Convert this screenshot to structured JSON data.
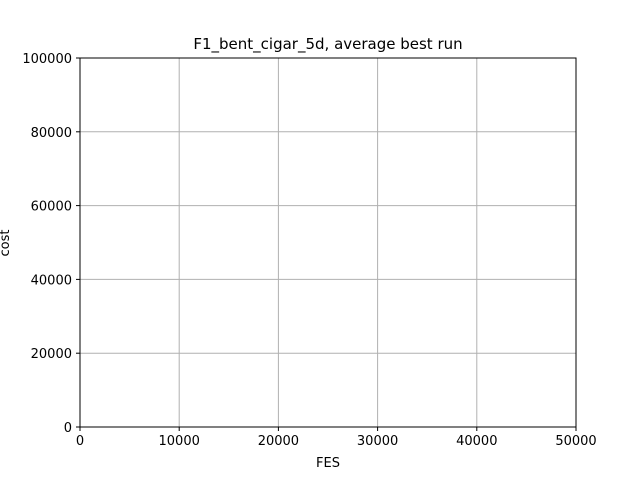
{
  "chart_data": {
    "type": "line",
    "title": "F1_bent_cigar_5d, average best run",
    "xlabel": "FES",
    "ylabel": "cost",
    "xlim": [
      0,
      50000
    ],
    "ylim": [
      0,
      100000
    ],
    "x_ticks": [
      0,
      10000,
      20000,
      30000,
      40000,
      50000
    ],
    "y_ticks": [
      0,
      20000,
      40000,
      60000,
      80000,
      100000
    ],
    "x_tick_labels": [
      "0",
      "10000",
      "20000",
      "30000",
      "40000",
      "50000"
    ],
    "y_tick_labels": [
      "0",
      "20000",
      "40000",
      "60000",
      "80000",
      "100000"
    ],
    "grid": true,
    "series": [],
    "colors": {
      "grid": "#b0b0b0",
      "axes": "#000000",
      "background": "#ffffff"
    }
  }
}
